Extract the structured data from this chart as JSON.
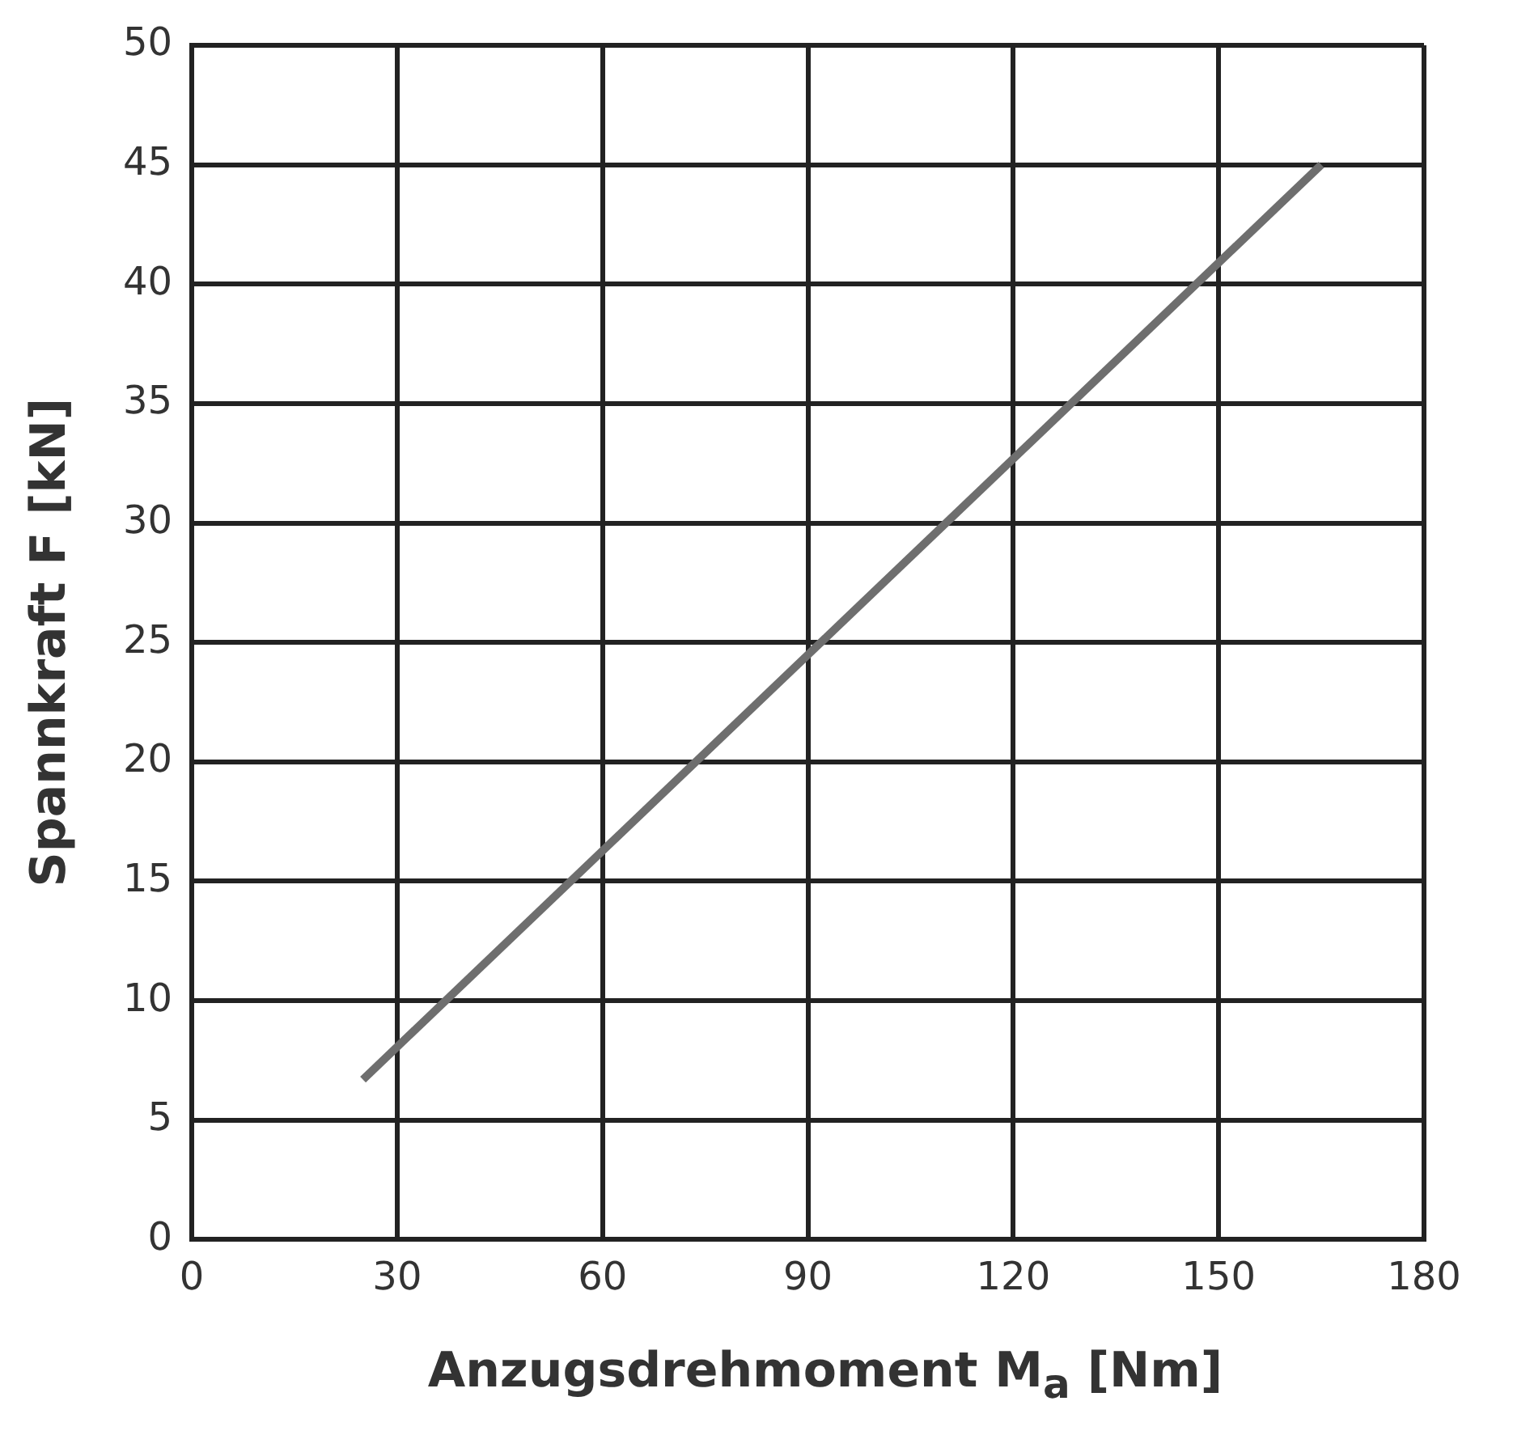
{
  "chart_data": {
    "type": "line",
    "xlabel": "Anzugsdrehmoment M$_{a}$ [Nm]",
    "ylabel": "Spannkraft F [kN]",
    "series": [
      {
        "color": "#6e6e6e",
        "x": [
          25,
          165
        ],
        "values": [
          6.7,
          45
        ]
      }
    ],
    "xlim": [
      0,
      180
    ],
    "xticks": [
      0,
      30,
      60,
      90,
      120,
      150,
      180
    ],
    "ylim": [
      0,
      50
    ],
    "yticks": [
      0,
      5,
      10,
      15,
      20,
      25,
      30,
      35,
      40,
      45,
      50
    ],
    "grid": true,
    "legend": false,
    "marker": "none",
    "line_style": "solid"
  }
}
